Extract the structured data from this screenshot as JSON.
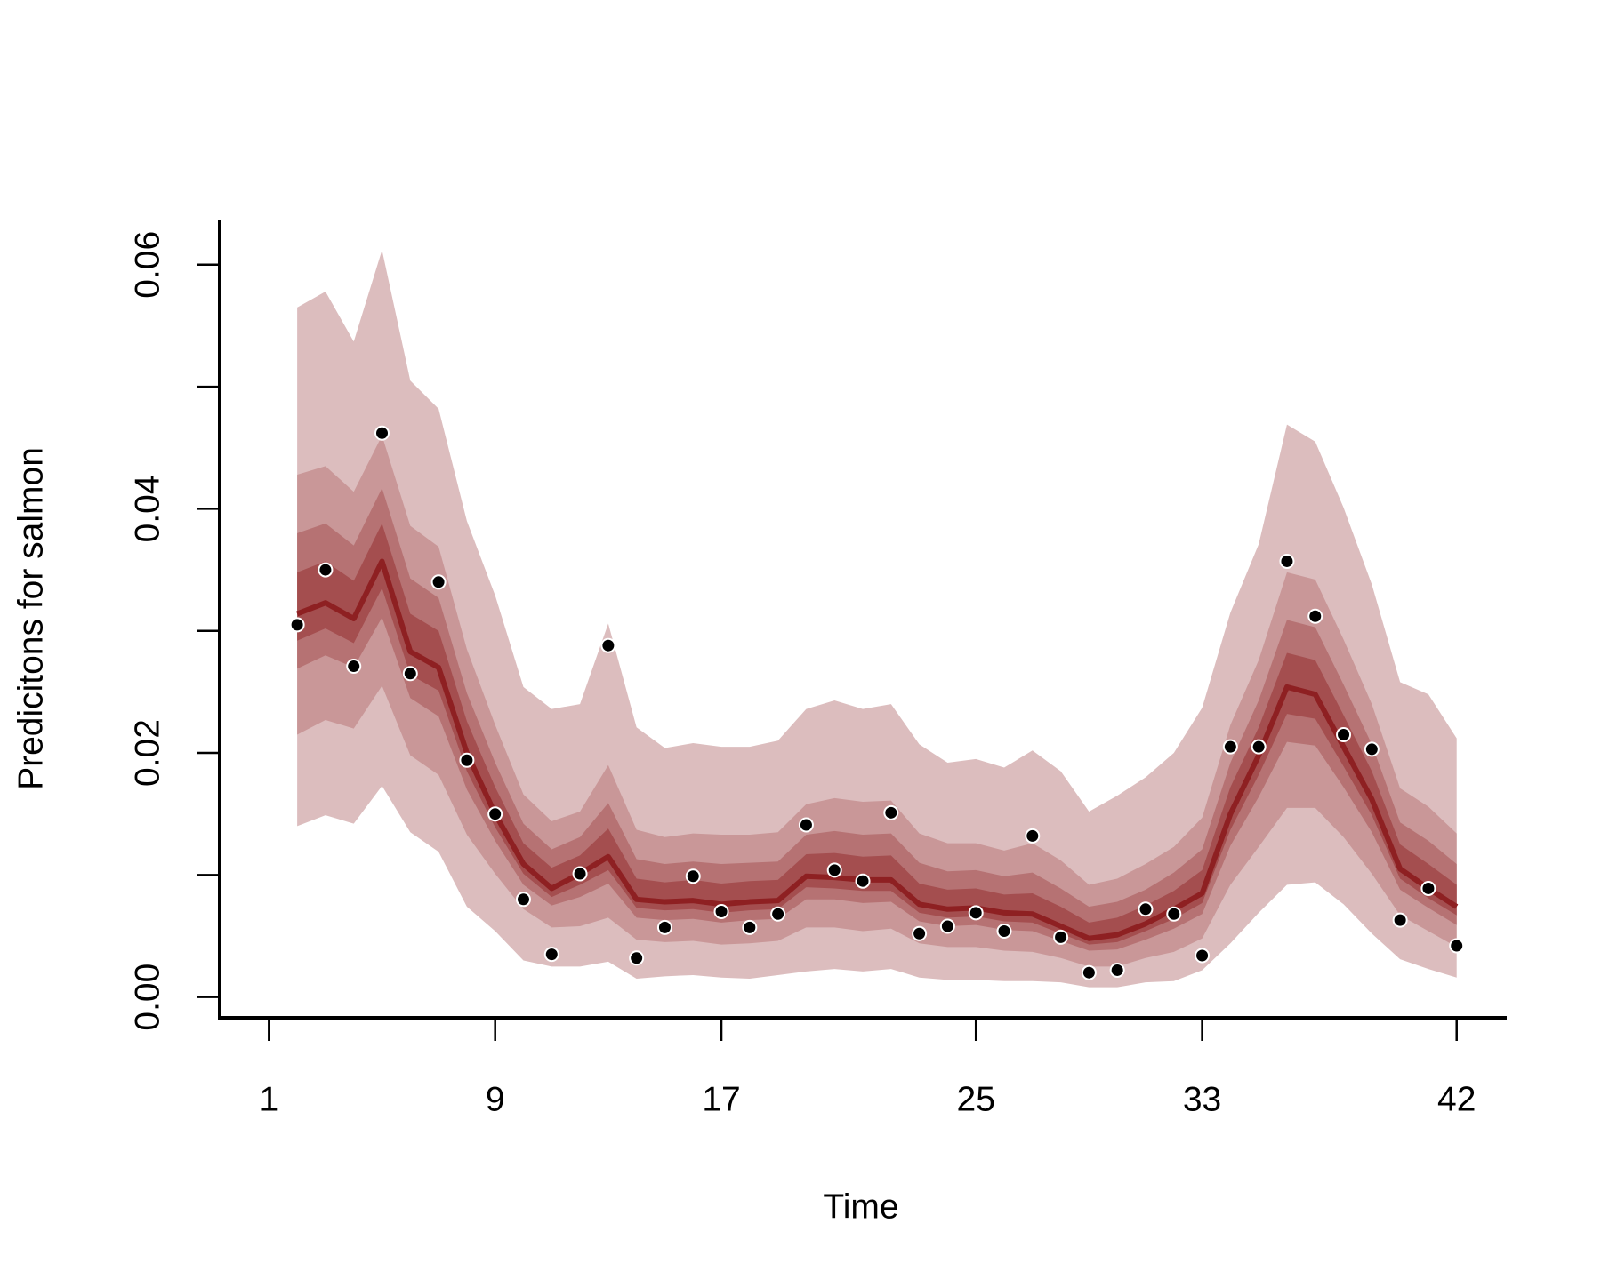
{
  "chart_data": {
    "type": "fan",
    "x_label": "Time",
    "y_label": "Predicitons for salmon",
    "x": [
      1,
      2,
      3,
      4,
      5,
      6,
      7,
      8,
      9,
      10,
      11,
      12,
      13,
      14,
      15,
      16,
      17,
      18,
      19,
      20,
      21,
      22,
      23,
      24,
      25,
      26,
      27,
      28,
      29,
      30,
      31,
      32,
      33,
      34,
      35,
      36,
      37,
      38,
      39,
      40,
      41,
      42
    ],
    "xlim": [
      -1.74,
      43.77
    ],
    "xticks": [
      {
        "value": 0,
        "label": "1"
      },
      {
        "value": 8,
        "label": "9"
      },
      {
        "value": 16,
        "label": "17"
      },
      25,
      33,
      42
    ],
    "ylim": [
      -0.0017,
      0.0637
    ],
    "yticks": [
      {
        "value": 0,
        "label": "0.00"
      },
      0.02,
      0.04,
      0.06
    ],
    "yticks_minor": [
      0.01,
      0.03,
      0.05
    ],
    "bands": [
      {
        "color": "#dcbdbe",
        "upper": [
          0.0565,
          0.0578,
          0.0537,
          0.0612,
          0.0505,
          0.0482,
          0.039,
          0.0329,
          0.0254,
          0.0236,
          0.024,
          0.0306,
          0.0221,
          0.0204,
          0.0208,
          0.0205,
          0.0205,
          0.021,
          0.0236,
          0.0243,
          0.0236,
          0.024,
          0.0207,
          0.0192,
          0.0195,
          0.0188,
          0.0202,
          0.0185,
          0.0152,
          0.0165,
          0.018,
          0.02,
          0.0237,
          0.0315,
          0.0371,
          0.0469,
          0.0455,
          0.0401,
          0.0338,
          0.0258,
          0.0248,
          0.0212
        ],
        "lower": [
          0.014,
          0.0149,
          0.0142,
          0.0173,
          0.0135,
          0.0119,
          0.0074,
          0.0054,
          0.003,
          0.0025,
          0.0025,
          0.0029,
          0.0015,
          0.0017,
          0.0018,
          0.0016,
          0.0015,
          0.0018,
          0.0021,
          0.0023,
          0.0021,
          0.0023,
          0.0016,
          0.0014,
          0.0014,
          0.0013,
          0.0013,
          0.0012,
          0.0008,
          0.0008,
          0.0012,
          0.0013,
          0.0022,
          0.0044,
          0.0069,
          0.0092,
          0.0094,
          0.0076,
          0.0052,
          0.0031,
          0.0023,
          0.0016
        ]
      },
      {
        "color": "#c99798",
        "upper": [
          0.0428,
          0.0435,
          0.0414,
          0.046,
          0.0386,
          0.0369,
          0.0285,
          0.0223,
          0.0166,
          0.0144,
          0.0152,
          0.019,
          0.0137,
          0.0131,
          0.0134,
          0.0133,
          0.0133,
          0.0135,
          0.0158,
          0.0163,
          0.016,
          0.0161,
          0.0134,
          0.0126,
          0.0126,
          0.012,
          0.0126,
          0.0112,
          0.0092,
          0.0097,
          0.0109,
          0.0123,
          0.0147,
          0.0223,
          0.0276,
          0.0348,
          0.0342,
          0.0293,
          0.024,
          0.0171,
          0.0156,
          0.0134
        ],
        "lower": [
          0.0215,
          0.0227,
          0.022,
          0.0255,
          0.0198,
          0.0182,
          0.0133,
          0.0101,
          0.0072,
          0.0057,
          0.0058,
          0.0065,
          0.0047,
          0.0045,
          0.0046,
          0.0043,
          0.0044,
          0.0046,
          0.0057,
          0.0057,
          0.0054,
          0.0056,
          0.0044,
          0.0041,
          0.0041,
          0.0038,
          0.0037,
          0.0032,
          0.0025,
          0.0025,
          0.0032,
          0.0037,
          0.0048,
          0.0092,
          0.0123,
          0.0155,
          0.0155,
          0.0131,
          0.0101,
          0.0067,
          0.0054,
          0.0041
        ]
      },
      {
        "color": "#b67273",
        "upper": [
          0.038,
          0.0388,
          0.037,
          0.0417,
          0.0343,
          0.0327,
          0.0249,
          0.0192,
          0.0142,
          0.0121,
          0.0131,
          0.0159,
          0.0113,
          0.0109,
          0.0111,
          0.0109,
          0.011,
          0.0111,
          0.0133,
          0.0136,
          0.0133,
          0.0134,
          0.011,
          0.0103,
          0.0104,
          0.0099,
          0.0102,
          0.0089,
          0.0074,
          0.0078,
          0.0088,
          0.0102,
          0.0121,
          0.0192,
          0.0243,
          0.0309,
          0.0303,
          0.0256,
          0.0207,
          0.0143,
          0.0128,
          0.0109
        ],
        "lower": [
          0.0269,
          0.028,
          0.027,
          0.0311,
          0.0245,
          0.023,
          0.017,
          0.0128,
          0.0092,
          0.0075,
          0.0082,
          0.0093,
          0.0065,
          0.0063,
          0.0064,
          0.0061,
          0.0063,
          0.0064,
          0.008,
          0.008,
          0.0077,
          0.0078,
          0.0062,
          0.0058,
          0.0059,
          0.0055,
          0.0054,
          0.0046,
          0.0038,
          0.0039,
          0.0047,
          0.0056,
          0.0068,
          0.0124,
          0.0164,
          0.0209,
          0.0206,
          0.0172,
          0.0135,
          0.0088,
          0.0073,
          0.0059
        ]
      },
      {
        "color": "#a44e4f",
        "upper": [
          0.0348,
          0.0357,
          0.0341,
          0.0388,
          0.0314,
          0.03,
          0.0226,
          0.0172,
          0.0126,
          0.0106,
          0.0116,
          0.0138,
          0.0097,
          0.0094,
          0.0096,
          0.0093,
          0.0095,
          0.0096,
          0.0117,
          0.0118,
          0.0115,
          0.0116,
          0.0093,
          0.0088,
          0.0089,
          0.0084,
          0.0085,
          0.0074,
          0.0061,
          0.0065,
          0.0075,
          0.0087,
          0.0104,
          0.0172,
          0.0221,
          0.0282,
          0.0276,
          0.0231,
          0.0185,
          0.0125,
          0.0109,
          0.0092
        ],
        "lower": [
          0.0292,
          0.0302,
          0.029,
          0.0335,
          0.0264,
          0.0251,
          0.0185,
          0.0139,
          0.0101,
          0.0082,
          0.0092,
          0.0104,
          0.0073,
          0.0071,
          0.0072,
          0.0069,
          0.0071,
          0.0072,
          0.009,
          0.0089,
          0.0087,
          0.0087,
          0.0069,
          0.0065,
          0.0066,
          0.0062,
          0.0061,
          0.0052,
          0.0043,
          0.0045,
          0.0054,
          0.0064,
          0.0077,
          0.0137,
          0.0182,
          0.0232,
          0.0228,
          0.0189,
          0.0149,
          0.0097,
          0.0081,
          0.0067
        ]
      }
    ],
    "median": {
      "color": "#8e2022",
      "values": [
        0.0314,
        0.0323,
        0.031,
        0.0357,
        0.0283,
        0.027,
        0.02,
        0.015,
        0.0109,
        0.0089,
        0.0101,
        0.0115,
        0.008,
        0.0078,
        0.0079,
        0.0076,
        0.0078,
        0.0079,
        0.0099,
        0.0098,
        0.0096,
        0.0096,
        0.0076,
        0.0072,
        0.0073,
        0.0069,
        0.0068,
        0.0058,
        0.0048,
        0.0051,
        0.006,
        0.0072,
        0.0085,
        0.015,
        0.0198,
        0.0254,
        0.0248,
        0.0205,
        0.0162,
        0.0105,
        0.0089,
        0.0074
      ]
    },
    "points": {
      "color": "#000000",
      "values": [
        0.0305,
        0.035,
        0.0271,
        0.0462,
        0.0265,
        0.034,
        0.0194,
        0.015,
        0.008,
        0.0035,
        0.0101,
        0.0288,
        0.0032,
        0.0057,
        0.0099,
        0.007,
        0.0057,
        0.0068,
        0.0141,
        0.0104,
        0.0095,
        0.0151,
        0.0052,
        0.0058,
        0.0069,
        0.0054,
        0.0132,
        0.0049,
        0.002,
        0.0022,
        0.0072,
        0.0068,
        0.0034,
        0.0205,
        0.0205,
        0.0357,
        0.0312,
        0.0215,
        0.0203,
        0.0063,
        0.0089,
        0.0042
      ]
    }
  }
}
